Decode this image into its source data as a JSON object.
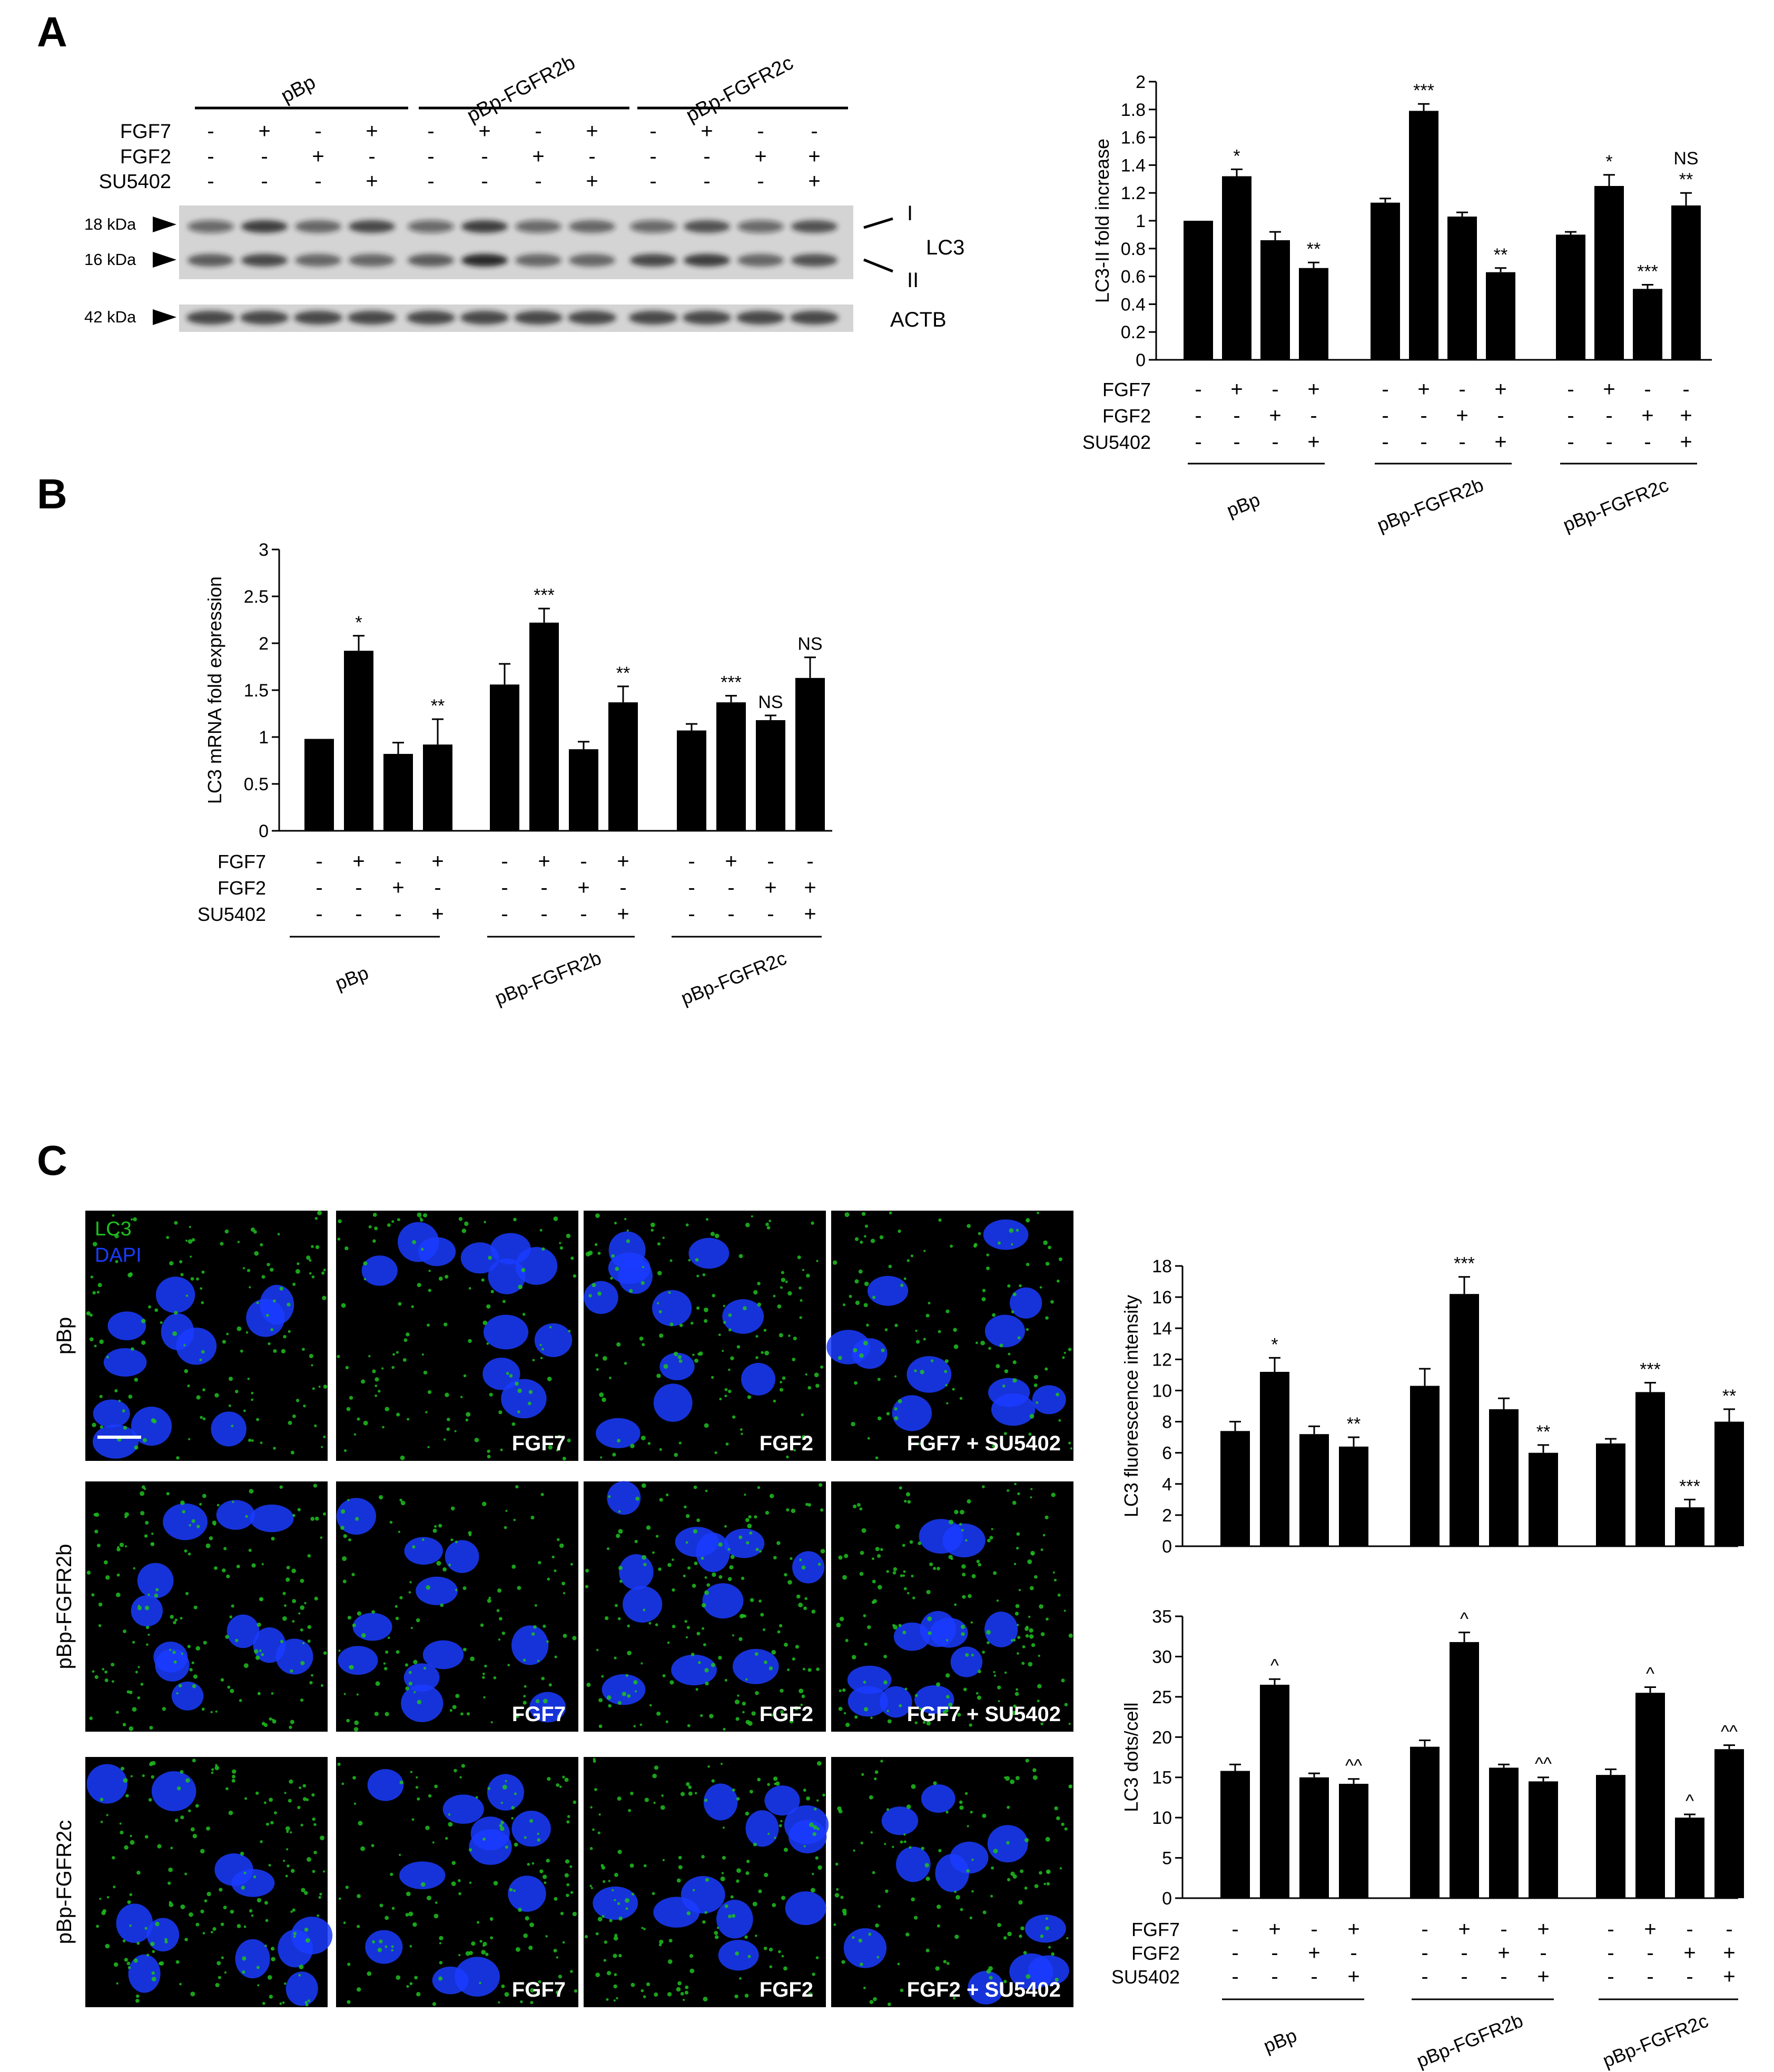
{
  "panels": {
    "a": "A",
    "b": "B",
    "c": "C"
  },
  "groups": [
    "pBp",
    "pBp-FGFR2b",
    "pBp-FGFR2c"
  ],
  "conditions": [
    {
      "label": "FGF7",
      "values": [
        "-",
        "+",
        "-",
        "+",
        "-",
        "+",
        "-",
        "+",
        "-",
        "+",
        "-",
        "-"
      ]
    },
    {
      "label": "FGF2",
      "values": [
        "-",
        "-",
        "+",
        "-",
        "-",
        "-",
        "+",
        "-",
        "-",
        "-",
        "+",
        "+"
      ]
    },
    {
      "label": "SU5402",
      "values": [
        "-",
        "-",
        "-",
        "+",
        "-",
        "-",
        "-",
        "+",
        "-",
        "-",
        "-",
        "+"
      ]
    }
  ],
  "western_blot": {
    "markers": [
      "18 kDa",
      "16 kDa",
      "42 kDa"
    ],
    "lc3_label": "LC3",
    "form_i": "I",
    "form_ii": "II",
    "actb_label": "ACTB",
    "lane_intensity_I": [
      0.55,
      0.8,
      0.6,
      0.75,
      0.55,
      0.8,
      0.55,
      0.6,
      0.55,
      0.7,
      0.55,
      0.7
    ],
    "lane_intensity_II": [
      0.65,
      0.75,
      0.6,
      0.6,
      0.65,
      0.9,
      0.6,
      0.6,
      0.75,
      0.8,
      0.6,
      0.7
    ]
  },
  "micrographs": {
    "legend": [
      "LC3",
      "DAPI"
    ],
    "legend_colors": [
      "#1ec01e",
      "#1a3cff"
    ],
    "rows": [
      {
        "label": "pBp",
        "captions": [
          "",
          "FGF7",
          "FGF2",
          "FGF7 + SU5402"
        ]
      },
      {
        "label": "pBp-FGFR2b",
        "captions": [
          "",
          "FGF7",
          "FGF2",
          "FGF7 + SU5402"
        ]
      },
      {
        "label": "pBp-FGFR2c",
        "captions": [
          "",
          "FGF7",
          "FGF2",
          "FGF2 + SU5402"
        ]
      }
    ]
  },
  "chart_data": [
    {
      "id": "A-right",
      "type": "bar",
      "ylabel": "LC3-II fold increase",
      "ylim": [
        0,
        2
      ],
      "yticks": [
        0,
        0.2,
        0.4,
        0.6,
        0.8,
        1,
        1.2,
        1.4,
        1.6,
        1.8,
        2
      ],
      "values": [
        1.0,
        1.32,
        0.86,
        0.66,
        1.13,
        1.79,
        1.03,
        0.63,
        0.9,
        1.25,
        0.51,
        1.11
      ],
      "errors": [
        0,
        0.05,
        0.06,
        0.04,
        0.03,
        0.05,
        0.03,
        0.03,
        0.02,
        0.08,
        0.03,
        0.09
      ],
      "annotations": [
        "",
        "*",
        "",
        "**",
        "",
        "***",
        "",
        "**",
        "",
        "*",
        "***",
        "NS\n**"
      ]
    },
    {
      "id": "B",
      "type": "bar",
      "ylabel": "LC3 mRNA fold expression",
      "ylim": [
        0,
        3
      ],
      "yticks": [
        0,
        0.5,
        1,
        1.5,
        2,
        2.5,
        3
      ],
      "values": [
        0.98,
        1.92,
        0.82,
        0.92,
        1.56,
        2.22,
        0.87,
        1.37,
        1.07,
        1.37,
        1.18,
        1.63
      ],
      "errors": [
        0,
        0.16,
        0.12,
        0.27,
        0.22,
        0.15,
        0.08,
        0.17,
        0.07,
        0.07,
        0.05,
        0.22
      ],
      "annotations": [
        "",
        "*",
        "",
        "**",
        "",
        "***",
        "",
        "**",
        "",
        "***",
        "NS",
        "NS"
      ]
    },
    {
      "id": "C-top",
      "type": "bar",
      "ylabel": "LC3 fluorescence intensity",
      "ylim": [
        0,
        18
      ],
      "yticks": [
        0,
        2,
        4,
        6,
        8,
        10,
        12,
        14,
        16,
        18
      ],
      "values": [
        7.4,
        11.2,
        7.2,
        6.4,
        10.3,
        16.2,
        8.8,
        6.0,
        6.6,
        9.9,
        2.5,
        8.0
      ],
      "errors": [
        0.6,
        0.9,
        0.5,
        0.6,
        1.1,
        1.1,
        0.7,
        0.5,
        0.3,
        0.6,
        0.5,
        0.8
      ],
      "annotations": [
        "",
        "*",
        "",
        "**",
        "",
        "***",
        "",
        "**",
        "",
        "***",
        "***",
        "**"
      ]
    },
    {
      "id": "C-bottom",
      "type": "bar",
      "ylabel": "LC3 dots/cell",
      "ylim": [
        0,
        35
      ],
      "yticks": [
        0,
        5,
        10,
        15,
        20,
        25,
        30,
        35
      ],
      "values": [
        15.8,
        26.5,
        15.0,
        14.2,
        18.8,
        31.8,
        16.2,
        14.5,
        15.3,
        25.5,
        10.0,
        18.5
      ],
      "errors": [
        0.8,
        0.7,
        0.5,
        0.6,
        0.8,
        1.2,
        0.4,
        0.5,
        0.7,
        0.7,
        0.4,
        0.5
      ],
      "annotations": [
        "",
        "^",
        "",
        "^^",
        "",
        "^",
        "",
        "^^",
        "",
        "^",
        "^",
        "^^"
      ]
    }
  ]
}
